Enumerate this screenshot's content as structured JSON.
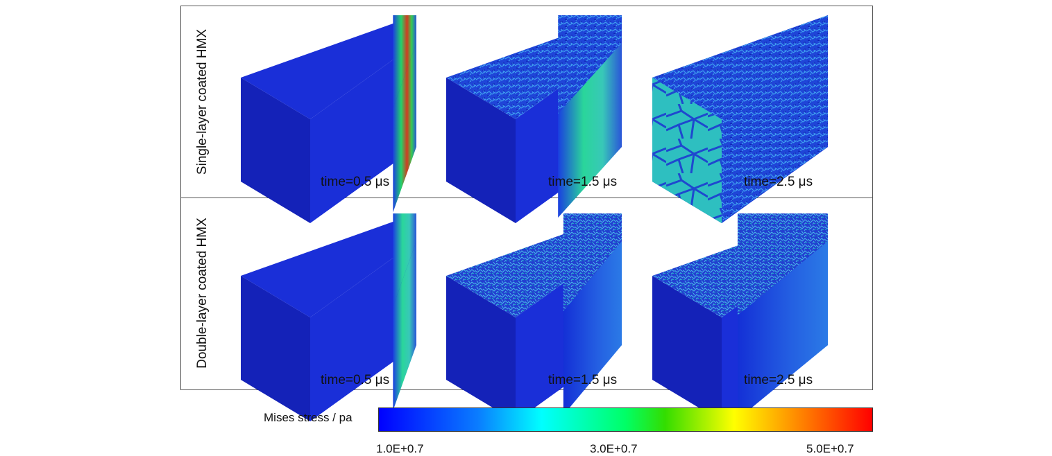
{
  "rows": [
    {
      "label": "Single-layer coated HMX",
      "panels": [
        {
          "time_label": "time=0.5 μs",
          "time_us": 0.5
        },
        {
          "time_label": "time=1.5 μs",
          "time_us": 1.5
        },
        {
          "time_label": "time=2.5 μs",
          "time_us": 2.5
        }
      ]
    },
    {
      "label": "Double-layer coated HMX",
      "panels": [
        {
          "time_label": "time=0.5 μs",
          "time_us": 0.5
        },
        {
          "time_label": "time=1.5 μs",
          "time_us": 1.5
        },
        {
          "time_label": "time=2.5 μs",
          "time_us": 2.5
        }
      ]
    }
  ],
  "colorbar": {
    "title": "Mises stress / pa",
    "ticks": [
      "1.0E+0.7",
      "3.0E+0.7",
      "5.0E+0.7"
    ],
    "colors": [
      "#0000ff",
      "#00ffff",
      "#00ff00",
      "#ffff00",
      "#ff0000"
    ]
  }
}
